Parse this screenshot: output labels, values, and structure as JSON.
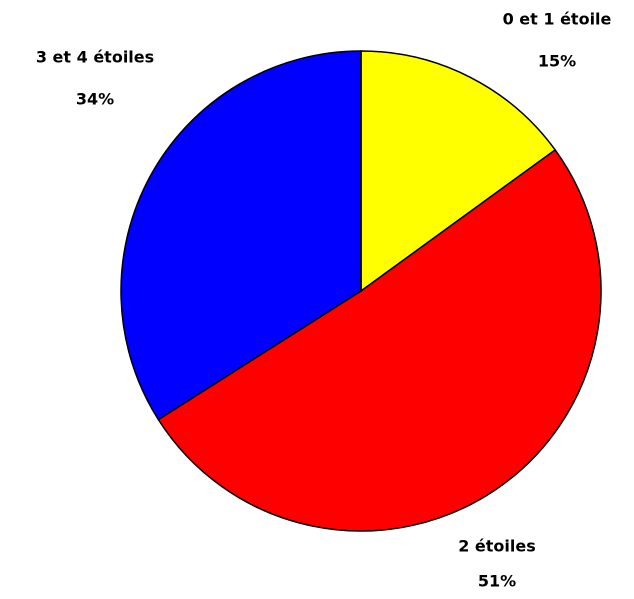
{
  "chart_data": {
    "type": "pie",
    "categories": [
      "0 et 1 étoile",
      "2 étoiles",
      "3 et 4 étoiles"
    ],
    "values": [
      15,
      51,
      34
    ],
    "value_labels": [
      "15%",
      "51%",
      "34%"
    ],
    "colors": [
      "#ffff00",
      "#ff0000",
      "#0000ff"
    ]
  }
}
